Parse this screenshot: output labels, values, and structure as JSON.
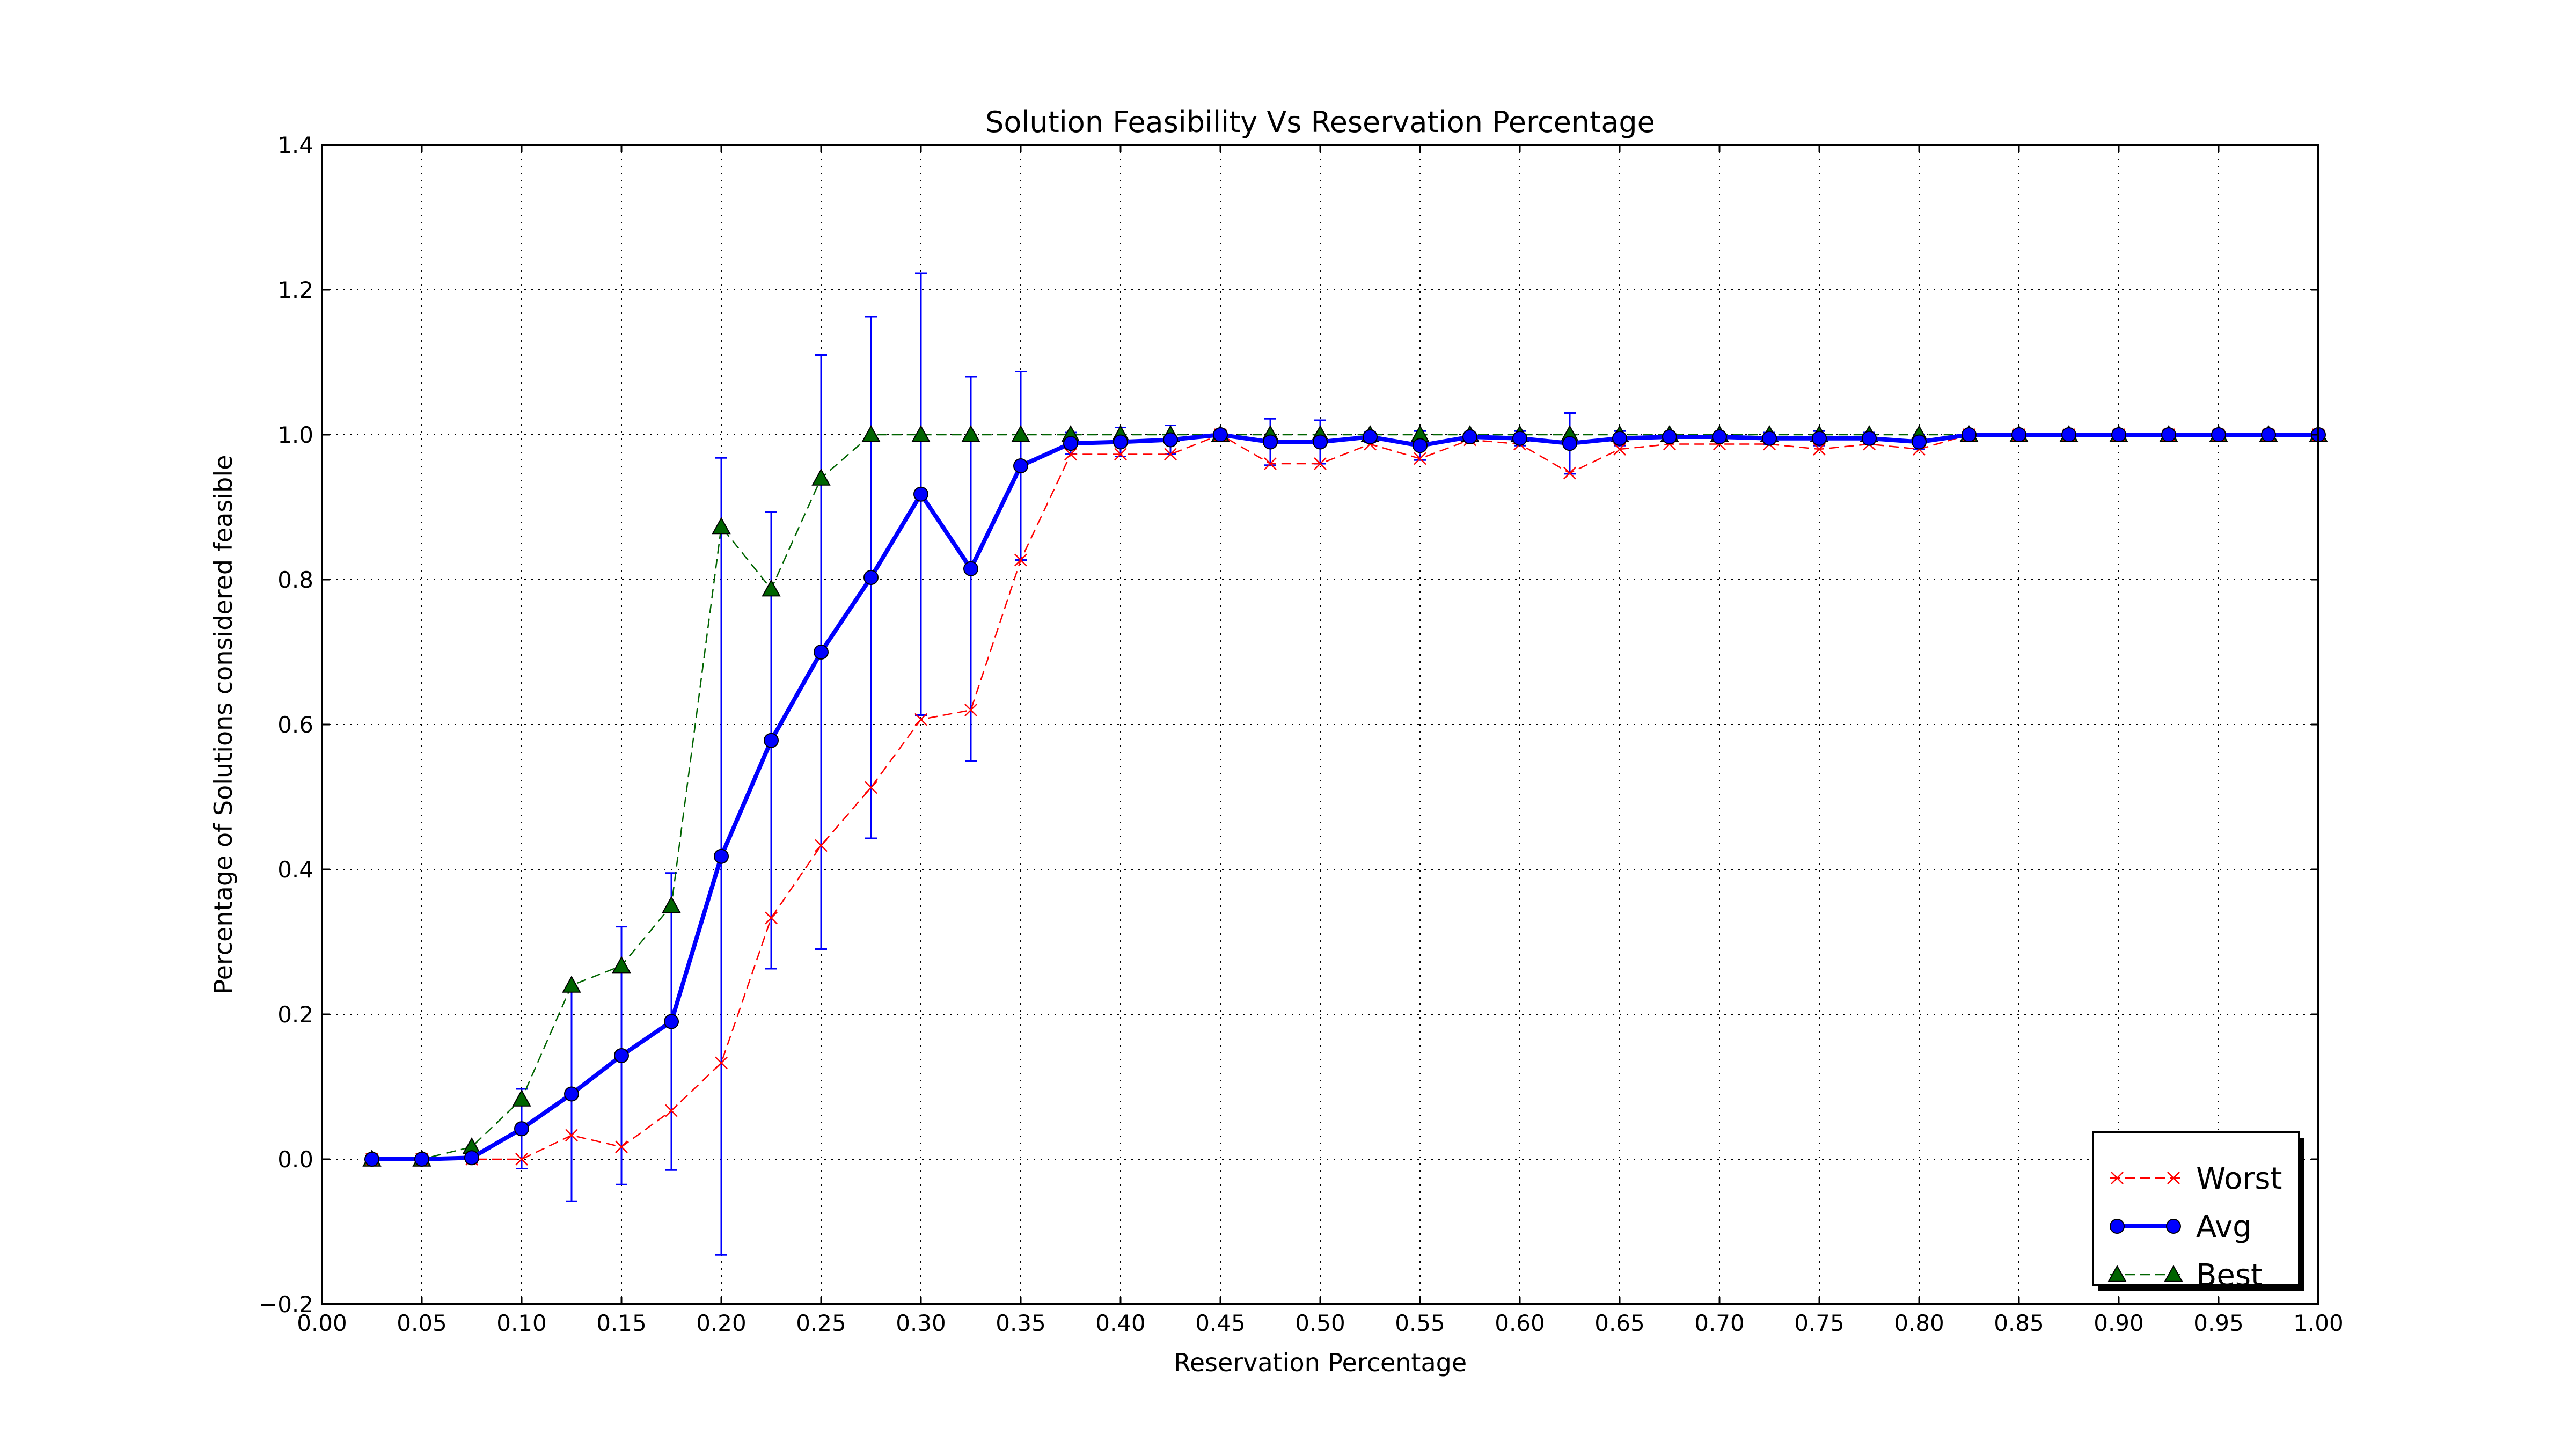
{
  "chart_data": {
    "type": "line",
    "title": "Solution Feasibility Vs Reservation Percentage",
    "xlabel": "Reservation Percentage",
    "ylabel": "Percentage of Solutions considered feasible",
    "xlim": [
      0.0,
      1.0
    ],
    "ylim": [
      -0.2,
      1.4
    ],
    "xticks": [
      "0.00",
      "0.05",
      "0.10",
      "0.15",
      "0.20",
      "0.25",
      "0.30",
      "0.35",
      "0.40",
      "0.45",
      "0.50",
      "0.55",
      "0.60",
      "0.65",
      "0.70",
      "0.75",
      "0.80",
      "0.85",
      "0.90",
      "0.95",
      "1.00"
    ],
    "yticks": [
      "−0.2",
      "0.0",
      "0.2",
      "0.4",
      "0.6",
      "0.8",
      "1.0",
      "1.2",
      "1.4"
    ],
    "grid": true,
    "legend_position": "lower-right",
    "x": [
      0.025,
      0.05,
      0.075,
      0.1,
      0.125,
      0.15,
      0.175,
      0.2,
      0.225,
      0.25,
      0.275,
      0.3,
      0.325,
      0.35,
      0.375,
      0.4,
      0.425,
      0.45,
      0.475,
      0.5,
      0.525,
      0.55,
      0.575,
      0.6,
      0.625,
      0.65,
      0.675,
      0.7,
      0.725,
      0.75,
      0.775,
      0.8,
      0.825,
      0.85,
      0.875,
      0.9,
      0.925,
      0.95,
      0.975,
      1.0
    ],
    "series": [
      {
        "name": "Worst",
        "color": "#ff0000",
        "style": "dashed",
        "marker": "x",
        "values": [
          0.0,
          0.0,
          0.0,
          0.0,
          0.033,
          0.017,
          0.067,
          0.133,
          0.333,
          0.433,
          0.513,
          0.607,
          0.62,
          0.827,
          0.973,
          0.973,
          0.973,
          1.0,
          0.96,
          0.96,
          0.987,
          0.967,
          0.993,
          0.987,
          0.947,
          0.98,
          0.987,
          0.987,
          0.987,
          0.98,
          0.987,
          0.98,
          1.0,
          1.0,
          1.0,
          1.0,
          1.0,
          1.0,
          1.0,
          1.0
        ]
      },
      {
        "name": "Avg",
        "color": "#0000ff",
        "style": "solid",
        "marker": "circle",
        "values": [
          0.0,
          0.0,
          0.002,
          0.042,
          0.09,
          0.143,
          0.19,
          0.418,
          0.578,
          0.7,
          0.803,
          0.918,
          0.815,
          0.957,
          0.988,
          0.99,
          0.993,
          1.0,
          0.99,
          0.99,
          0.997,
          0.985,
          0.997,
          0.995,
          0.988,
          0.995,
          0.997,
          0.997,
          0.995,
          0.995,
          0.995,
          0.99,
          1.0,
          1.0,
          1.0,
          1.0,
          1.0,
          1.0,
          1.0,
          1.0
        ],
        "error": [
          0.0,
          0.0,
          0.007,
          0.055,
          0.148,
          0.178,
          0.205,
          0.55,
          0.315,
          0.41,
          0.36,
          0.305,
          0.265,
          0.13,
          0.015,
          0.02,
          0.02,
          0.005,
          0.032,
          0.03,
          0.007,
          0.02,
          0.006,
          0.01,
          0.042,
          0.01,
          0.006,
          0.006,
          0.008,
          0.01,
          0.008,
          0.01,
          0.0,
          0.0,
          0.0,
          0.0,
          0.0,
          0.0,
          0.0,
          0.0
        ]
      },
      {
        "name": "Best",
        "color": "#006400",
        "style": "dashed",
        "marker": "triangle",
        "values": [
          0.0,
          0.0,
          0.017,
          0.083,
          0.24,
          0.267,
          0.35,
          0.873,
          0.787,
          0.94,
          1.0,
          1.0,
          1.0,
          1.0,
          1.0,
          1.0,
          1.0,
          1.0,
          1.0,
          1.0,
          1.0,
          1.0,
          1.0,
          1.0,
          1.0,
          1.0,
          1.0,
          1.0,
          1.0,
          1.0,
          1.0,
          1.0,
          1.0,
          1.0,
          1.0,
          1.0,
          1.0,
          1.0,
          1.0,
          1.0
        ]
      }
    ]
  }
}
